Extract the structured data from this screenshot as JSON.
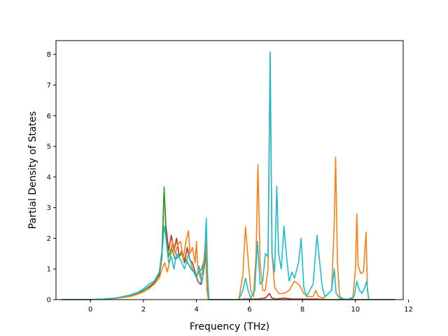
{
  "chart_data": {
    "type": "line",
    "title": "",
    "xlabel": "Frequency (THz)",
    "ylabel": "Partial Density of States",
    "xlim": [
      -1.3,
      11.8
    ],
    "ylim": [
      0,
      8.45
    ],
    "xticks": [
      0,
      2,
      4,
      6,
      8,
      10,
      12
    ],
    "yticks": [
      0,
      1,
      2,
      3,
      4,
      5,
      6,
      7,
      8
    ],
    "grid": false,
    "legend": "none",
    "series": [
      {
        "color": "#d62728",
        "points": [
          [
            -1.1,
            0
          ],
          [
            0,
            0
          ],
          [
            0.5,
            0.02
          ],
          [
            1.0,
            0.05
          ],
          [
            1.5,
            0.12
          ],
          [
            1.8,
            0.2
          ],
          [
            2.0,
            0.3
          ],
          [
            2.2,
            0.42
          ],
          [
            2.4,
            0.55
          ],
          [
            2.6,
            0.8
          ],
          [
            2.7,
            1.4
          ],
          [
            2.78,
            3.6
          ],
          [
            2.85,
            2.4
          ],
          [
            2.95,
            1.6
          ],
          [
            3.05,
            2.1
          ],
          [
            3.15,
            1.6
          ],
          [
            3.25,
            2.0
          ],
          [
            3.35,
            1.4
          ],
          [
            3.45,
            1.6
          ],
          [
            3.55,
            1.2
          ],
          [
            3.65,
            1.7
          ],
          [
            3.75,
            1.3
          ],
          [
            3.85,
            1.2
          ],
          [
            3.95,
            0.9
          ],
          [
            4.05,
            0.6
          ],
          [
            4.15,
            0.5
          ],
          [
            4.25,
            0.8
          ],
          [
            4.3,
            1.1
          ],
          [
            4.35,
            1.6
          ],
          [
            4.4,
            0.3
          ],
          [
            4.45,
            0
          ],
          [
            5.6,
            0
          ],
          [
            5.8,
            0.02
          ],
          [
            6.0,
            0.02
          ],
          [
            6.3,
            0.02
          ],
          [
            6.6,
            0.05
          ],
          [
            6.75,
            0.2
          ],
          [
            6.85,
            0.05
          ],
          [
            7.0,
            0.02
          ],
          [
            7.3,
            0.05
          ],
          [
            7.6,
            0.02
          ],
          [
            8.0,
            0.02
          ],
          [
            8.5,
            0.02
          ],
          [
            9.0,
            0
          ],
          [
            11.5,
            0
          ]
        ]
      },
      {
        "color": "#2ca02c",
        "points": [
          [
            -1.1,
            0
          ],
          [
            0,
            0
          ],
          [
            0.5,
            0.02
          ],
          [
            1.0,
            0.05
          ],
          [
            1.5,
            0.12
          ],
          [
            1.8,
            0.2
          ],
          [
            2.0,
            0.3
          ],
          [
            2.2,
            0.4
          ],
          [
            2.4,
            0.5
          ],
          [
            2.6,
            0.9
          ],
          [
            2.7,
            1.6
          ],
          [
            2.78,
            3.68
          ],
          [
            2.85,
            2.1
          ],
          [
            2.95,
            1.4
          ],
          [
            3.05,
            1.7
          ],
          [
            3.2,
            1.3
          ],
          [
            3.4,
            1.5
          ],
          [
            3.6,
            1.3
          ],
          [
            3.8,
            1.0
          ],
          [
            4.0,
            0.8
          ],
          [
            4.2,
            1.0
          ],
          [
            4.35,
            1.5
          ],
          [
            4.4,
            0.5
          ],
          [
            4.45,
            0
          ],
          [
            11.5,
            0
          ]
        ]
      },
      {
        "color": "#ff7f0e",
        "points": [
          [
            -1.1,
            0
          ],
          [
            0,
            0
          ],
          [
            0.5,
            0.02
          ],
          [
            1.0,
            0.04
          ],
          [
            1.5,
            0.1
          ],
          [
            1.8,
            0.18
          ],
          [
            2.0,
            0.25
          ],
          [
            2.2,
            0.35
          ],
          [
            2.4,
            0.5
          ],
          [
            2.6,
            0.7
          ],
          [
            2.7,
            1.0
          ],
          [
            2.8,
            1.2
          ],
          [
            2.9,
            0.9
          ],
          [
            3.0,
            1.3
          ],
          [
            3.1,
            1.9
          ],
          [
            3.2,
            1.5
          ],
          [
            3.3,
            1.8
          ],
          [
            3.4,
            1.9
          ],
          [
            3.5,
            1.3
          ],
          [
            3.6,
            1.9
          ],
          [
            3.7,
            2.25
          ],
          [
            3.75,
            1.5
          ],
          [
            3.85,
            1.7
          ],
          [
            3.95,
            1.2
          ],
          [
            4.0,
            1.9
          ],
          [
            4.05,
            1.0
          ],
          [
            4.15,
            0.7
          ],
          [
            4.25,
            1.0
          ],
          [
            4.35,
            2.0
          ],
          [
            4.4,
            0.4
          ],
          [
            4.45,
            0
          ],
          [
            5.6,
            0
          ],
          [
            5.75,
            0.8
          ],
          [
            5.85,
            2.38
          ],
          [
            5.95,
            1.3
          ],
          [
            6.05,
            0.3
          ],
          [
            6.15,
            0.1
          ],
          [
            6.25,
            1.5
          ],
          [
            6.32,
            4.4
          ],
          [
            6.4,
            1.2
          ],
          [
            6.5,
            0.3
          ],
          [
            6.6,
            0.3
          ],
          [
            6.7,
            1.0
          ],
          [
            6.78,
            8.0
          ],
          [
            6.85,
            1.5
          ],
          [
            6.95,
            0.4
          ],
          [
            7.1,
            0.2
          ],
          [
            7.3,
            0.2
          ],
          [
            7.5,
            0.3
          ],
          [
            7.7,
            0.6
          ],
          [
            7.9,
            0.45
          ],
          [
            8.05,
            0.2
          ],
          [
            8.2,
            0.1
          ],
          [
            8.4,
            0.1
          ],
          [
            8.5,
            0.3
          ],
          [
            8.6,
            0.1
          ],
          [
            8.8,
            0.05
          ],
          [
            9.1,
            0.3
          ],
          [
            9.2,
            2.5
          ],
          [
            9.25,
            4.65
          ],
          [
            9.32,
            1.2
          ],
          [
            9.4,
            0.1
          ],
          [
            9.6,
            0
          ],
          [
            9.9,
            0.05
          ],
          [
            10.0,
            1.0
          ],
          [
            10.05,
            2.8
          ],
          [
            10.1,
            1.1
          ],
          [
            10.2,
            0.85
          ],
          [
            10.3,
            0.9
          ],
          [
            10.4,
            2.2
          ],
          [
            10.45,
            0.3
          ],
          [
            10.5,
            0
          ],
          [
            11.5,
            0
          ]
        ]
      },
      {
        "color": "#17becf",
        "points": [
          [
            -1.1,
            0
          ],
          [
            0,
            0
          ],
          [
            0.5,
            0.02
          ],
          [
            1.0,
            0.06
          ],
          [
            1.5,
            0.15
          ],
          [
            1.8,
            0.25
          ],
          [
            2.0,
            0.35
          ],
          [
            2.2,
            0.5
          ],
          [
            2.4,
            0.6
          ],
          [
            2.6,
            0.9
          ],
          [
            2.7,
            1.5
          ],
          [
            2.78,
            2.4
          ],
          [
            2.85,
            2.0
          ],
          [
            2.95,
            1.2
          ],
          [
            3.05,
            1.4
          ],
          [
            3.15,
            1.0
          ],
          [
            3.25,
            1.5
          ],
          [
            3.4,
            1.3
          ],
          [
            3.55,
            1.0
          ],
          [
            3.7,
            1.5
          ],
          [
            3.85,
            1.0
          ],
          [
            4.0,
            0.7
          ],
          [
            4.1,
            1.1
          ],
          [
            4.2,
            0.5
          ],
          [
            4.3,
            1.2
          ],
          [
            4.37,
            2.65
          ],
          [
            4.42,
            0.8
          ],
          [
            4.47,
            0
          ],
          [
            5.6,
            0
          ],
          [
            5.75,
            0.3
          ],
          [
            5.85,
            0.7
          ],
          [
            5.95,
            0.3
          ],
          [
            6.05,
            0.05
          ],
          [
            6.2,
            0.3
          ],
          [
            6.3,
            1.9
          ],
          [
            6.4,
            0.5
          ],
          [
            6.5,
            0.6
          ],
          [
            6.6,
            1.5
          ],
          [
            6.7,
            1.4
          ],
          [
            6.78,
            8.08
          ],
          [
            6.85,
            1.5
          ],
          [
            6.95,
            0.9
          ],
          [
            7.03,
            3.7
          ],
          [
            7.1,
            1.5
          ],
          [
            7.2,
            1.0
          ],
          [
            7.3,
            2.4
          ],
          [
            7.4,
            1.4
          ],
          [
            7.5,
            0.6
          ],
          [
            7.6,
            0.9
          ],
          [
            7.7,
            0.7
          ],
          [
            7.85,
            1.2
          ],
          [
            7.95,
            2.0
          ],
          [
            8.05,
            0.4
          ],
          [
            8.15,
            0.1
          ],
          [
            8.4,
            0.5
          ],
          [
            8.55,
            2.1
          ],
          [
            8.65,
            1.2
          ],
          [
            8.75,
            0.4
          ],
          [
            8.85,
            0.1
          ],
          [
            9.1,
            0.3
          ],
          [
            9.2,
            1.0
          ],
          [
            9.27,
            0.2
          ],
          [
            9.4,
            0.05
          ],
          [
            9.7,
            0
          ],
          [
            9.95,
            0.1
          ],
          [
            10.05,
            0.6
          ],
          [
            10.15,
            0.3
          ],
          [
            10.25,
            0.2
          ],
          [
            10.35,
            0.4
          ],
          [
            10.42,
            0.6
          ],
          [
            10.5,
            0
          ],
          [
            11.5,
            0
          ]
        ]
      }
    ]
  }
}
